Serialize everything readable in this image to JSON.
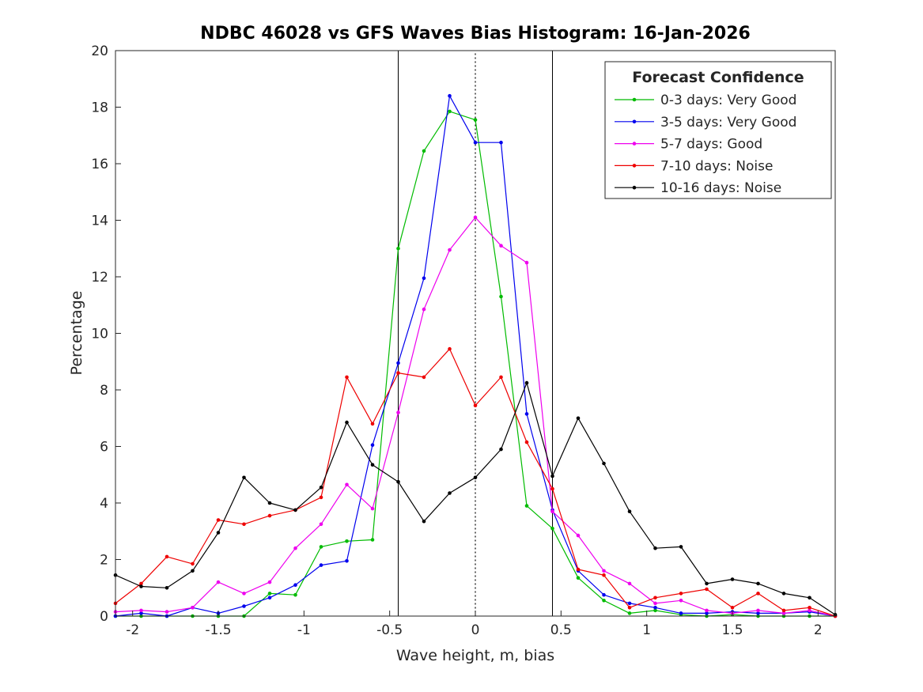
{
  "chart_data": {
    "type": "line",
    "title": "NDBC 46028 vs GFS Waves Bias Histogram: 16-Jan-2026",
    "xlabel": "Wave height, m, bias",
    "ylabel": "Percentage",
    "xlim": [
      -2.1,
      2.1
    ],
    "ylim": [
      0,
      20
    ],
    "xticks": [
      -2,
      -1.5,
      -1,
      -0.5,
      0,
      0.5,
      1,
      1.5,
      2
    ],
    "yticks": [
      0,
      2,
      4,
      6,
      8,
      10,
      12,
      14,
      16,
      18,
      20
    ],
    "grid": false,
    "x": [
      -2.1,
      -1.95,
      -1.8,
      -1.65,
      -1.5,
      -1.35,
      -1.2,
      -1.05,
      -0.9,
      -0.75,
      -0.6,
      -0.45,
      -0.3,
      -0.15,
      0,
      0.15,
      0.3,
      0.45,
      0.6,
      0.75,
      0.9,
      1.05,
      1.2,
      1.35,
      1.5,
      1.65,
      1.8,
      1.95,
      2.1
    ],
    "series": [
      {
        "name": "0-3 days: Very Good",
        "color": "#00bb00",
        "values": [
          0,
          0,
          0,
          0,
          0,
          0,
          0.8,
          0.75,
          2.45,
          2.65,
          2.7,
          13.0,
          16.45,
          17.85,
          17.55,
          11.3,
          3.9,
          3.1,
          1.35,
          0.55,
          0.1,
          0.2,
          0.05,
          0,
          0.05,
          0,
          0,
          0,
          0
        ]
      },
      {
        "name": "3-5 days: Very Good",
        "color": "#0000ee",
        "values": [
          0,
          0.1,
          0,
          0.3,
          0.1,
          0.35,
          0.65,
          1.1,
          1.8,
          1.95,
          6.05,
          8.95,
          11.95,
          18.4,
          16.75,
          16.75,
          7.15,
          3.75,
          1.6,
          0.75,
          0.45,
          0.3,
          0.1,
          0.1,
          0.15,
          0.1,
          0.1,
          0.15,
          0
        ]
      },
      {
        "name": "5-7 days: Good",
        "color": "#ee00ee",
        "values": [
          0.15,
          0.2,
          0.15,
          0.3,
          1.2,
          0.8,
          1.2,
          2.4,
          3.25,
          4.65,
          3.8,
          7.2,
          10.85,
          12.95,
          14.1,
          13.1,
          12.5,
          3.7,
          2.85,
          1.6,
          1.15,
          0.45,
          0.55,
          0.2,
          0.1,
          0.2,
          0.1,
          0.2,
          0
        ]
      },
      {
        "name": "7-10 days: Noise",
        "color": "#ee0000",
        "values": [
          0.45,
          1.15,
          2.1,
          1.85,
          3.4,
          3.25,
          3.55,
          3.75,
          4.2,
          8.45,
          6.8,
          8.6,
          8.45,
          9.45,
          7.45,
          8.45,
          6.15,
          4.5,
          1.65,
          1.45,
          0.3,
          0.65,
          0.8,
          0.95,
          0.3,
          0.8,
          0.2,
          0.3,
          0
        ]
      },
      {
        "name": "10-16 days: Noise",
        "color": "#000000",
        "values": [
          1.45,
          1.05,
          1.0,
          1.6,
          2.95,
          4.9,
          4.0,
          3.75,
          4.55,
          6.85,
          5.35,
          4.75,
          3.35,
          4.35,
          4.9,
          5.9,
          8.25,
          4.95,
          7.0,
          5.4,
          3.7,
          2.4,
          2.45,
          1.15,
          1.3,
          1.15,
          0.8,
          0.65,
          0.05
        ]
      }
    ],
    "reference_lines": {
      "solid_x": [
        -0.45,
        0.45
      ],
      "dotted_x": [
        0
      ]
    },
    "legend": {
      "title": "Forecast Confidence",
      "position": "top-right"
    }
  }
}
